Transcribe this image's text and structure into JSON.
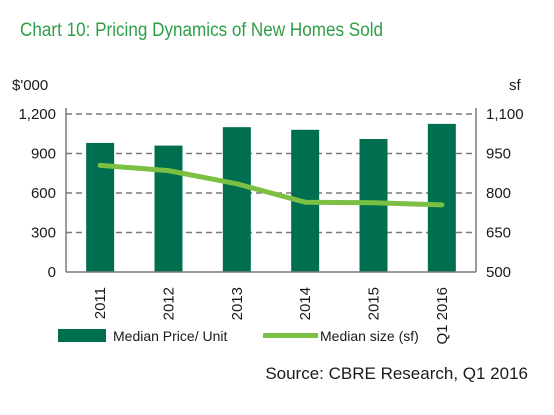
{
  "chart_data": {
    "type": "bar",
    "title": "Chart 10: Pricing Dynamics of New Homes Sold",
    "categories": [
      "2011",
      "2012",
      "2013",
      "2014",
      "2015",
      "Q1 2016"
    ],
    "series": [
      {
        "name": "Median Price/ Unit",
        "type": "bar",
        "axis": "left",
        "color": "#006f4f",
        "values": [
          980,
          960,
          1100,
          1080,
          1010,
          1125
        ]
      },
      {
        "name": "Median size (sf)",
        "type": "line",
        "axis": "right",
        "color": "#7bc043",
        "values": [
          905,
          885,
          835,
          765,
          763,
          755
        ]
      }
    ],
    "y_left": {
      "unit_label": "$'000",
      "ylim": [
        0,
        1200
      ],
      "ticks": [
        "0",
        "300",
        "600",
        "900",
        "1,200"
      ],
      "tick_values": [
        0,
        300,
        600,
        900,
        1200
      ]
    },
    "y_right": {
      "unit_label": "sf",
      "ylim": [
        500,
        1100
      ],
      "ticks": [
        "500",
        "650",
        "800",
        "950",
        "1,100"
      ],
      "tick_values": [
        500,
        650,
        800,
        950,
        1100
      ]
    },
    "grid": true,
    "legend_position": "bottom",
    "source": "Source: CBRE Research, Q1 2016"
  }
}
